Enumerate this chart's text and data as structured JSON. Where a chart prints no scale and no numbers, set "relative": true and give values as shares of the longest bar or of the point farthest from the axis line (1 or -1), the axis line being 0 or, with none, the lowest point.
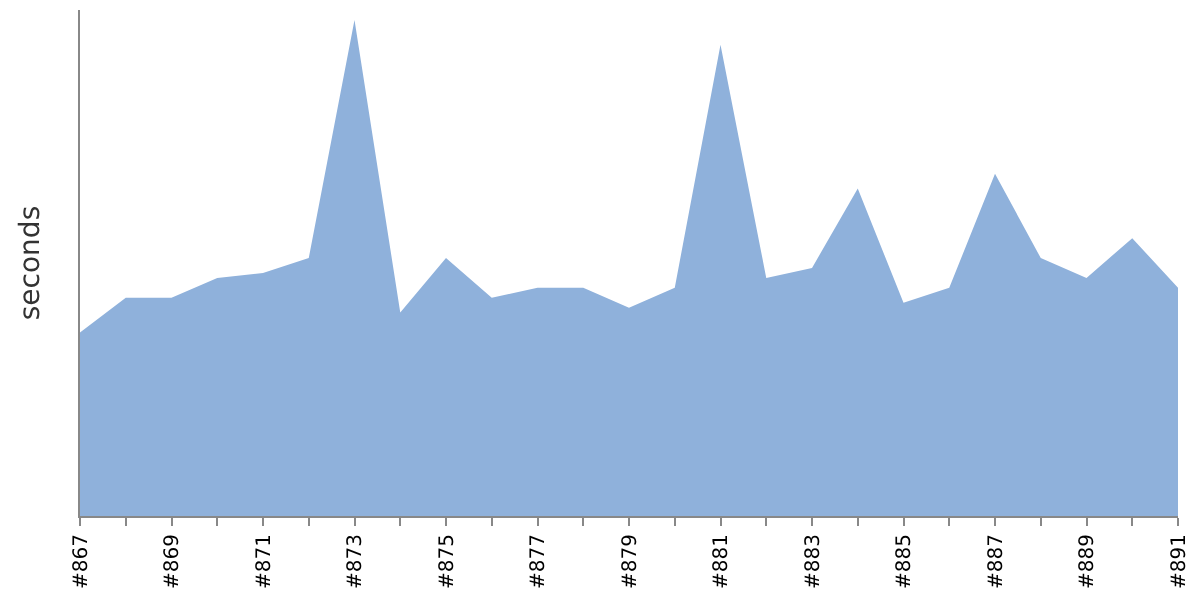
{
  "chart_data": {
    "type": "area",
    "ylabel": "seconds",
    "relative": true,
    "categories": [
      "#867",
      null,
      "#869",
      null,
      "#871",
      null,
      "#873",
      null,
      "#875",
      null,
      "#877",
      null,
      "#879",
      null,
      "#881",
      null,
      "#883",
      null,
      "#885",
      null,
      "#887",
      null,
      "#889",
      null,
      "#891"
    ],
    "series": [
      {
        "color": "#8fb1db",
        "values": [
          0.37,
          0.44,
          0.44,
          0.48,
          0.49,
          0.52,
          1,
          0.41,
          0.52,
          0.44,
          0.46,
          0.46,
          0.42,
          0.46,
          0.95,
          0.48,
          0.5,
          0.66,
          0.43,
          0.46,
          0.69,
          0.52,
          0.48,
          0.56,
          0.46
        ]
      }
    ]
  }
}
